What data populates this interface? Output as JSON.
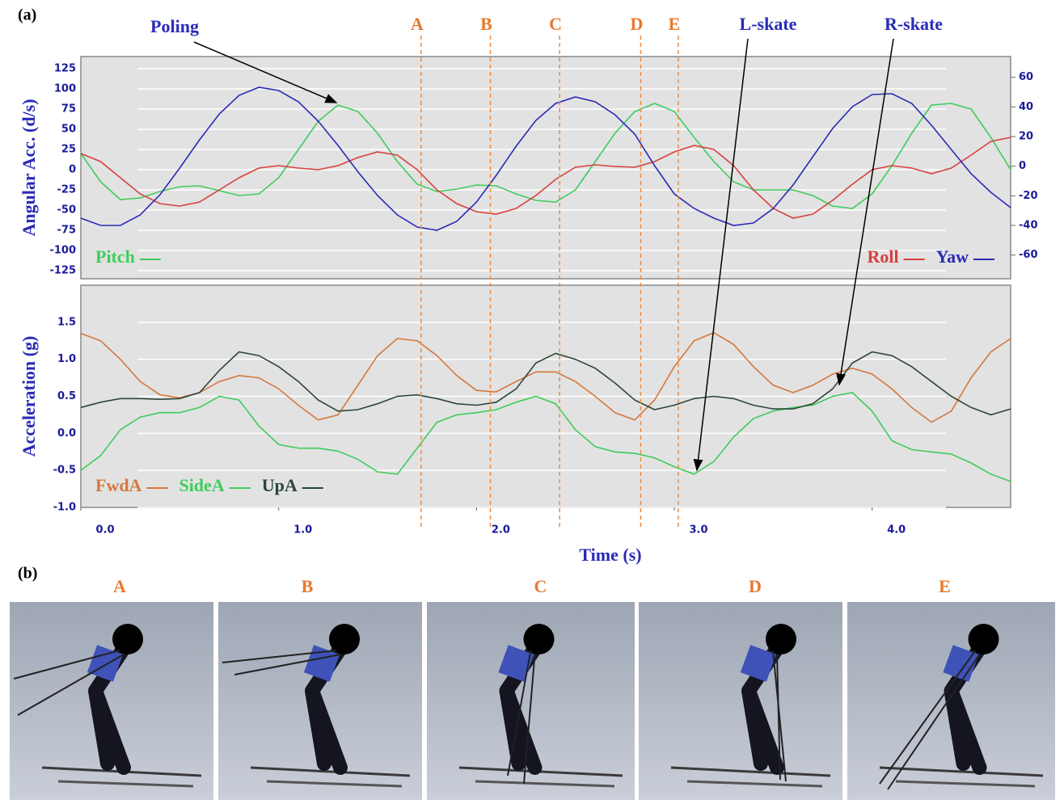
{
  "chart_data": [
    {
      "type": "line",
      "ylabel": "Angular Acc. (d/s)",
      "x": [
        0,
        0.1,
        0.2,
        0.3,
        0.4,
        0.5,
        0.6,
        0.7,
        0.8,
        0.9,
        1.0,
        1.1,
        1.2,
        1.3,
        1.4,
        1.5,
        1.6,
        1.7,
        1.8,
        1.9,
        2.0,
        2.1,
        2.2,
        2.3,
        2.4,
        2.5,
        2.6,
        2.7,
        2.8,
        2.9,
        3.0,
        3.1,
        3.2,
        3.3,
        3.4,
        3.5,
        3.6,
        3.7,
        3.8,
        3.9,
        4.0,
        4.1,
        4.2,
        4.3,
        4.4,
        4.5,
        4.6,
        4.7
      ],
      "xlim": [
        0,
        4.7
      ],
      "ylim": [
        -135,
        140
      ],
      "yticks": [
        -125,
        -100,
        -75,
        -50,
        -25,
        0,
        25,
        50,
        75,
        100,
        125
      ],
      "y2lim": [
        -76,
        74
      ],
      "y2ticks": [
        -60,
        -40,
        -20,
        0,
        20,
        40,
        60
      ],
      "grid": true,
      "series": [
        {
          "name": "Pitch",
          "color": "#3fcc5c",
          "legend": "lower left",
          "values": [
            20,
            -15,
            -37,
            -35,
            -27,
            -21,
            -20,
            -26,
            -32,
            -30,
            -10,
            25,
            60,
            80,
            72,
            45,
            10,
            -18,
            -27,
            -24,
            -19,
            -20,
            -30,
            -38,
            -40,
            -25,
            10,
            45,
            72,
            82,
            72,
            40,
            10,
            -15,
            -25,
            -25,
            -25,
            -32,
            -45,
            -48,
            -30,
            5,
            45,
            80,
            82,
            75,
            40,
            0
          ]
        },
        {
          "name": "Roll",
          "color": "#d84040",
          "legend": "lower right",
          "values": [
            20,
            10,
            -10,
            -30,
            -42,
            -45,
            -40,
            -25,
            -10,
            2,
            5,
            2,
            0,
            5,
            15,
            22,
            18,
            0,
            -25,
            -42,
            -52,
            -55,
            -48,
            -32,
            -12,
            3,
            6,
            4,
            3,
            10,
            22,
            30,
            25,
            5,
            -25,
            -48,
            -60,
            -55,
            -38,
            -18,
            0,
            5,
            2,
            -5,
            2,
            18,
            35,
            40
          ]
        },
        {
          "name": "Yaw",
          "color": "#2a2ab8",
          "legend": "lower right",
          "values": [
            -60,
            -69,
            -69,
            -56,
            -31,
            2,
            37,
            69,
            92,
            102,
            98,
            84,
            60,
            30,
            -2.5,
            -32,
            -56,
            -71,
            -75,
            -64,
            -40,
            -7,
            29,
            61,
            82,
            90,
            84,
            68,
            44,
            5,
            -30,
            -48,
            -60,
            -69,
            -66,
            -48,
            -19,
            16,
            51,
            78,
            93,
            94,
            82,
            55,
            25,
            -5,
            -28,
            -47
          ]
        }
      ]
    },
    {
      "type": "line",
      "ylabel": "Acceleration (g)",
      "xlabel": "Time (s)",
      "x": [
        0,
        0.1,
        0.2,
        0.3,
        0.4,
        0.5,
        0.6,
        0.7,
        0.8,
        0.9,
        1.0,
        1.1,
        1.2,
        1.3,
        1.4,
        1.5,
        1.6,
        1.7,
        1.8,
        1.9,
        2.0,
        2.1,
        2.2,
        2.3,
        2.4,
        2.5,
        2.6,
        2.7,
        2.8,
        2.9,
        3.0,
        3.1,
        3.2,
        3.3,
        3.4,
        3.5,
        3.6,
        3.7,
        3.8,
        3.9,
        4.0,
        4.1,
        4.2,
        4.3,
        4.4,
        4.5,
        4.6,
        4.7
      ],
      "xlim": [
        0,
        4.7
      ],
      "xticks": [
        {
          "value": 0,
          "label": "0.0"
        },
        {
          "value": 1,
          "label": "1.0"
        },
        {
          "value": 2,
          "label": "2.0"
        },
        {
          "value": 3,
          "label": "3.0"
        },
        {
          "value": 4,
          "label": "4.0"
        }
      ],
      "ylim": [
        -1,
        2
      ],
      "yticks": [
        {
          "value": -1,
          "label": "-1.0"
        },
        -0.5,
        {
          "value": 0,
          "label": "0.0"
        },
        0.5,
        {
          "value": 1,
          "label": "1.0"
        },
        1.5
      ],
      "grid": true,
      "series": [
        {
          "name": "FwdA",
          "color": "#d4783e",
          "legend": "lower left",
          "values": [
            1.35,
            1.25,
            1.0,
            0.7,
            0.52,
            0.48,
            0.55,
            0.7,
            0.78,
            0.75,
            0.6,
            0.38,
            0.18,
            0.25,
            0.65,
            1.05,
            1.28,
            1.25,
            1.05,
            0.78,
            0.58,
            0.56,
            0.7,
            0.83,
            0.83,
            0.7,
            0.5,
            0.28,
            0.18,
            0.45,
            0.9,
            1.25,
            1.36,
            1.2,
            0.9,
            0.65,
            0.55,
            0.65,
            0.8,
            0.88,
            0.8,
            0.6,
            0.35,
            0.15,
            0.3,
            0.75,
            1.1,
            1.28
          ]
        },
        {
          "name": "SideA",
          "color": "#3fcc5c",
          "legend": "lower left",
          "values": [
            -0.5,
            -0.3,
            0.05,
            0.22,
            0.28,
            0.28,
            0.35,
            0.5,
            0.45,
            0.1,
            -0.15,
            -0.2,
            -0.2,
            -0.24,
            -0.35,
            -0.52,
            -0.55,
            -0.2,
            0.15,
            0.25,
            0.28,
            0.32,
            0.42,
            0.5,
            0.4,
            0.05,
            -0.18,
            -0.25,
            -0.27,
            -0.33,
            -0.45,
            -0.55,
            -0.38,
            -0.05,
            0.2,
            0.3,
            0.35,
            0.38,
            0.5,
            0.55,
            0.3,
            -0.1,
            -0.22,
            -0.25,
            -0.28,
            -0.4,
            -0.55,
            -0.65
          ]
        },
        {
          "name": "UpA",
          "color": "#2c4638",
          "legend": "lower left",
          "values": [
            0.35,
            0.42,
            0.47,
            0.47,
            0.46,
            0.47,
            0.55,
            0.85,
            1.1,
            1.05,
            0.9,
            0.7,
            0.45,
            0.3,
            0.32,
            0.4,
            0.5,
            0.52,
            0.47,
            0.4,
            0.38,
            0.42,
            0.6,
            0.95,
            1.08,
            1.0,
            0.88,
            0.68,
            0.45,
            0.32,
            0.38,
            0.47,
            0.5,
            0.47,
            0.38,
            0.33,
            0.33,
            0.4,
            0.6,
            0.95,
            1.1,
            1.05,
            0.9,
            0.7,
            0.5,
            0.35,
            0.25,
            0.33
          ]
        }
      ]
    }
  ],
  "figure": {
    "panel_a": "(a)",
    "panel_b": "(b)",
    "markers": [
      {
        "label": "A",
        "x": 1.72
      },
      {
        "label": "B",
        "x": 2.07
      },
      {
        "label": "C",
        "x": 2.42
      },
      {
        "label": "D",
        "x": 2.83
      },
      {
        "label": "E",
        "x": 3.02
      }
    ],
    "annotations": [
      "Poling",
      "L-skate",
      "R-skate"
    ],
    "photos": [
      "A",
      "B",
      "C",
      "D",
      "E"
    ]
  }
}
